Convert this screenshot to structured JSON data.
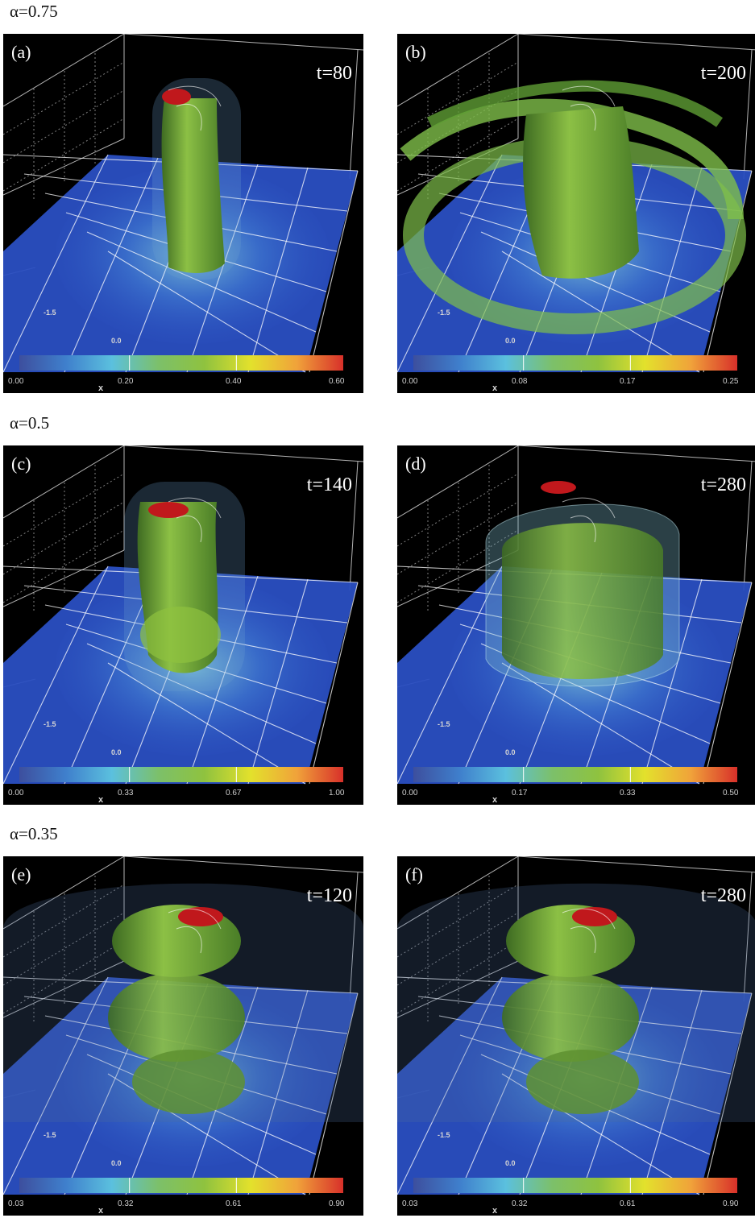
{
  "rows": [
    {
      "label": "α=0.75"
    },
    {
      "label": "α=0.5"
    },
    {
      "label": "α=0.35"
    }
  ],
  "panels": [
    {
      "id": "(a)",
      "time": "t=80",
      "ticks": [
        "0.00",
        "0.20",
        "0.40",
        "0.60"
      ],
      "shape": "narrow-column"
    },
    {
      "id": "(b)",
      "time": "t=200",
      "ticks": [
        "0.00",
        "0.08",
        "0.17",
        "0.25"
      ],
      "shape": "spiral-arms"
    },
    {
      "id": "(c)",
      "time": "t=140",
      "ticks": [
        "0.00",
        "0.33",
        "0.67",
        "1.00"
      ],
      "shape": "twisted-column"
    },
    {
      "id": "(d)",
      "time": "t=280",
      "ticks": [
        "0.00",
        "0.17",
        "0.33",
        "0.50"
      ],
      "shape": "wide-cylinder"
    },
    {
      "id": "(e)",
      "time": "t=120",
      "ticks": [
        "0.03",
        "0.32",
        "0.61",
        "0.90"
      ],
      "shape": "bulging-column"
    },
    {
      "id": "(f)",
      "time": "t=280",
      "ticks": [
        "0.03",
        "0.32",
        "0.61",
        "0.90"
      ],
      "shape": "bulging-column"
    }
  ],
  "axis": {
    "tick_a": "-1.5",
    "tick_b": "0.0",
    "axis_name": "x"
  },
  "colors": {
    "plane": "#2a4fc2",
    "structure": "#6fa534",
    "core": "#c0181c",
    "grid": "#ffffff"
  },
  "colorbar_stops": [
    "#3d4f9e",
    "#3f7fcc",
    "#5bc0de",
    "#7cc06a",
    "#8fc23f",
    "#e3e12c",
    "#f0a23a",
    "#d8302a"
  ]
}
